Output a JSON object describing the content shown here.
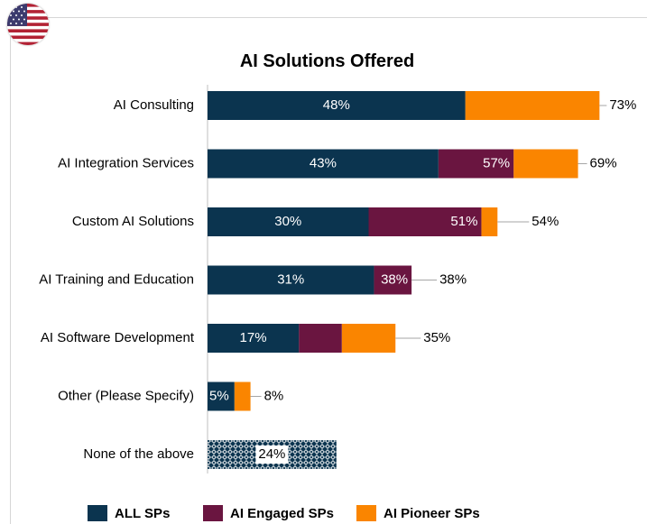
{
  "chart_data": {
    "type": "bar",
    "orientation": "horizontal",
    "title": "AI Solutions Offered",
    "categories": [
      "AI Consulting",
      "AI Integration Services",
      "Custom AI Solutions",
      "AI Training and Education",
      "AI Software Development",
      "Other (Please Specify)",
      "None of the above"
    ],
    "series": [
      {
        "name": "ALL SPs",
        "color": "#0b344f",
        "values": [
          48,
          43,
          30,
          31,
          17,
          5,
          null
        ],
        "labels": [
          "48%",
          "43%",
          "30%",
          "31%",
          "17%",
          "5%",
          ""
        ]
      },
      {
        "name": "AI Engaged SPs",
        "color": "#6a1540",
        "values": [
          null,
          57,
          51,
          38,
          25,
          null,
          null
        ],
        "labels": [
          "",
          "57%",
          "51%",
          "38%",
          "",
          "",
          ""
        ]
      },
      {
        "name": "AI Pioneer SPs",
        "color": "#fa8500",
        "values": [
          73,
          69,
          54,
          38,
          35,
          8,
          null
        ],
        "labels": [
          "73%",
          "69%",
          "54%",
          "38%",
          "35%",
          "8%",
          ""
        ]
      }
    ],
    "none_of_above": {
      "value": 24,
      "label": "24%",
      "fill": "patterned"
    },
    "xlim": [
      0,
      100
    ],
    "legend_position": "bottom",
    "grid": false
  }
}
